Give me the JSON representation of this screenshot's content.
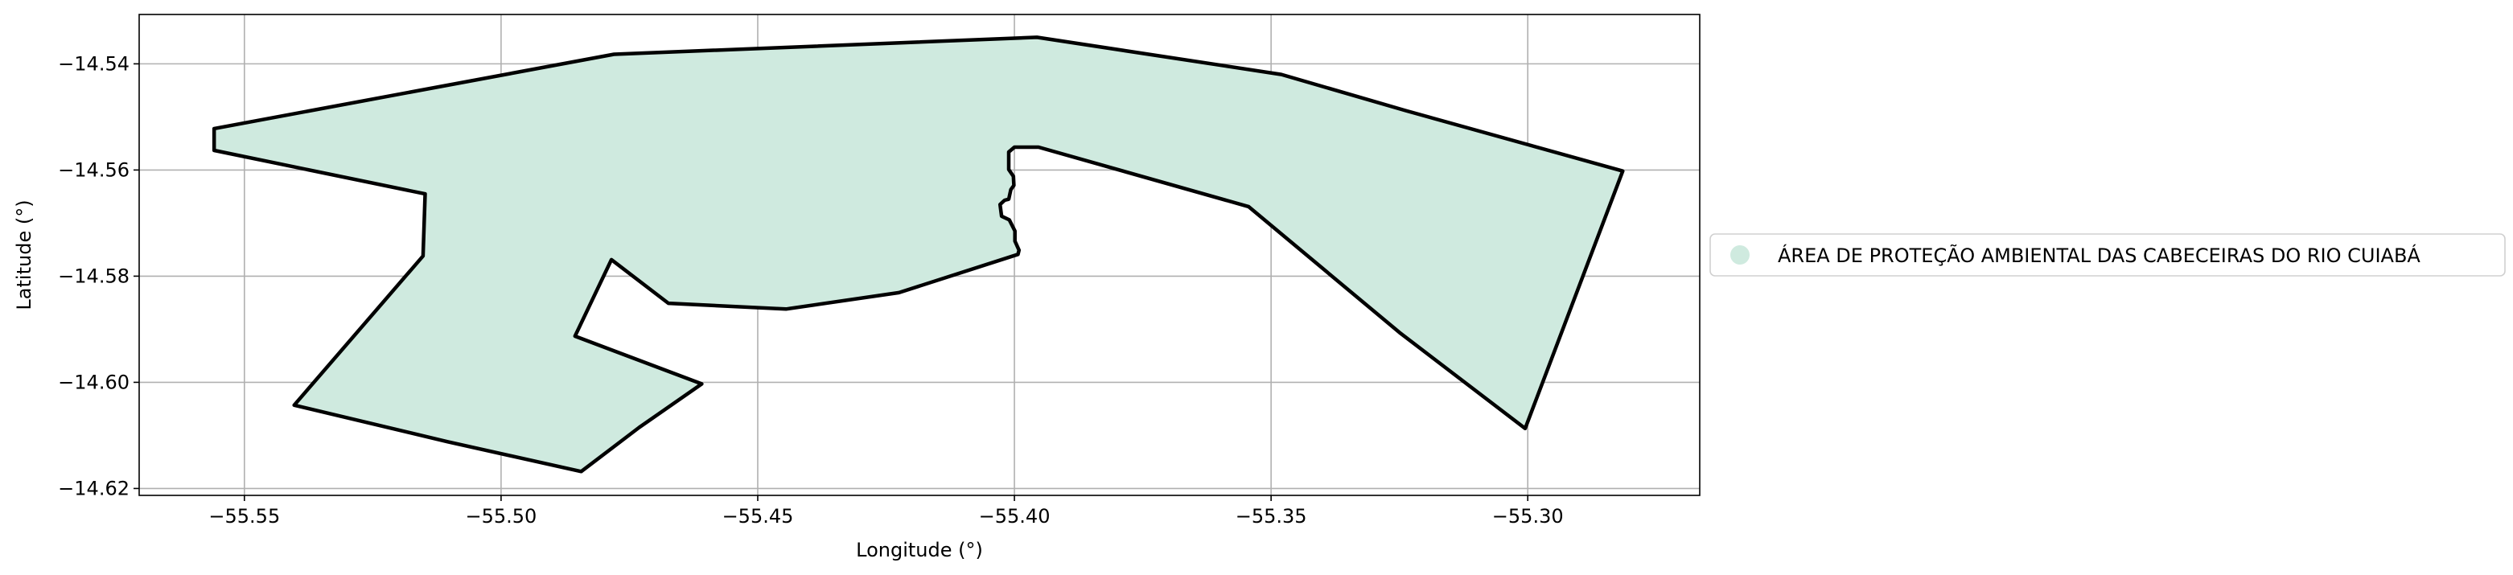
{
  "chart_data": {
    "type": "map",
    "xlabel": "Longitude (°)",
    "ylabel": "Latitude (°)",
    "xlim": [
      -55.5705,
      -55.2665
    ],
    "ylim": [
      -14.6213,
      -14.5307
    ],
    "xticks": [
      -55.55,
      -55.5,
      -55.45,
      -55.4,
      -55.35,
      -55.3
    ],
    "xtick_labels": [
      "−55.55",
      "−55.50",
      "−55.45",
      "−55.40",
      "−55.35",
      "−55.30"
    ],
    "yticks": [
      -14.54,
      -14.56,
      -14.58,
      -14.6,
      -14.62
    ],
    "ytick_labels": [
      "−14.54",
      "−14.56",
      "−14.58",
      "−14.60",
      "−14.62"
    ],
    "grid": true,
    "legend": {
      "placement": "right",
      "entries": [
        {
          "label": "ÁREA DE PROTEÇÃO AMBIENTAL DAS CABECEIRAS DO RIO CUIABÁ",
          "color": "#cfeadf"
        }
      ]
    },
    "series": [
      {
        "name": "ÁREA DE PROTEÇÃO AMBIENTAL DAS CABECEIRAS DO RIO CUIABÁ",
        "fill": "#cfeadf",
        "edge": "#000000",
        "coordinates": [
          [
            -55.5559,
            -14.5522
          ],
          [
            -55.5559,
            -14.5563
          ],
          [
            -55.5148,
            -14.5645
          ],
          [
            -55.5152,
            -14.5762
          ],
          [
            -55.5403,
            -14.6043
          ],
          [
            -55.5104,
            -14.6112
          ],
          [
            -55.4844,
            -14.6168
          ],
          [
            -55.4731,
            -14.6085
          ],
          [
            -55.4609,
            -14.6003
          ],
          [
            -55.4856,
            -14.5913
          ],
          [
            -55.4785,
            -14.5769
          ],
          [
            -55.4674,
            -14.5851
          ],
          [
            -55.4445,
            -14.5862
          ],
          [
            -55.4225,
            -14.5831
          ],
          [
            -55.3993,
            -14.5759
          ],
          [
            -55.3991,
            -14.5751
          ],
          [
            -55.3999,
            -14.5734
          ],
          [
            -55.3999,
            -14.5715
          ],
          [
            -55.401,
            -14.5694
          ],
          [
            -55.4025,
            -14.5687
          ],
          [
            -55.4028,
            -14.5665
          ],
          [
            -55.4019,
            -14.5657
          ],
          [
            -55.4011,
            -14.5655
          ],
          [
            -55.4007,
            -14.5637
          ],
          [
            -55.4001,
            -14.5629
          ],
          [
            -55.4002,
            -14.5612
          ],
          [
            -55.4011,
            -14.5599
          ],
          [
            -55.4011,
            -14.5566
          ],
          [
            -55.4,
            -14.5557
          ],
          [
            -55.3953,
            -14.5557
          ],
          [
            -55.3544,
            -14.5669
          ],
          [
            -55.325,
            -14.5906
          ],
          [
            -55.3005,
            -14.6087
          ],
          [
            -55.2815,
            -14.5602
          ],
          [
            -55.3238,
            -14.5488
          ],
          [
            -55.348,
            -14.542
          ],
          [
            -55.3956,
            -14.535
          ],
          [
            -55.478,
            -14.5382
          ],
          [
            -55.5559,
            -14.5522
          ]
        ]
      }
    ]
  }
}
